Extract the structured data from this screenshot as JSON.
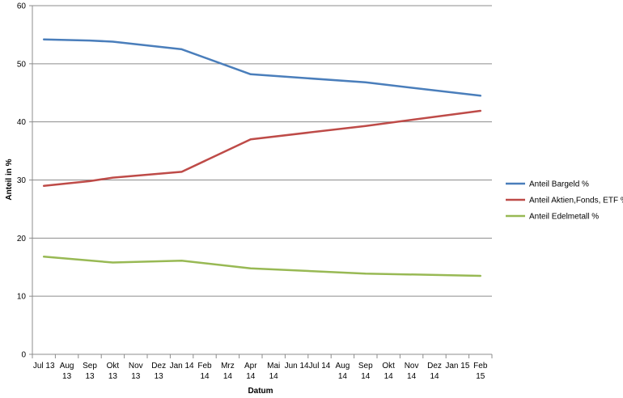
{
  "chart_data": {
    "type": "line",
    "title": "",
    "xlabel": "Datum",
    "ylabel": "Anteil in %",
    "ylim": [
      0,
      60
    ],
    "yticks": [
      0,
      10,
      20,
      30,
      40,
      50,
      60
    ],
    "grid": true,
    "legend_position": "right",
    "categories": [
      "Jul 13",
      "Aug 13",
      "Sep 13",
      "Okt 13",
      "Nov 13",
      "Dez 13",
      "Jan 14",
      "Feb 14",
      "Mrz 14",
      "Apr 14",
      "Mai 14",
      "Jun 14",
      "Jul 14",
      "Aug 14",
      "Sep 14",
      "Okt 14",
      "Nov 14",
      "Dez 14",
      "Jan 15",
      "Feb 15"
    ],
    "tick_labels": [
      [
        "Jul 13"
      ],
      [
        "Aug",
        "13"
      ],
      [
        "Sep",
        "13"
      ],
      [
        "Okt",
        "13"
      ],
      [
        "Nov",
        "13"
      ],
      [
        "Dez",
        "13"
      ],
      [
        "Jan 14"
      ],
      [
        "Feb",
        "14"
      ],
      [
        "Mrz",
        "14"
      ],
      [
        "Apr",
        "14"
      ],
      [
        "Mai",
        "14"
      ],
      [
        "Jun 14"
      ],
      [
        "Jul 14"
      ],
      [
        "Aug",
        "14"
      ],
      [
        "Sep",
        "14"
      ],
      [
        "Okt",
        "14"
      ],
      [
        "Nov",
        "14"
      ],
      [
        "Dez",
        "14"
      ],
      [
        "Jan 15"
      ],
      [
        "Feb",
        "15"
      ]
    ],
    "series": [
      {
        "name": "Anteil Bargeld %",
        "color": "#4a7ebb",
        "points": [
          [
            0,
            54.2
          ],
          [
            2,
            54.0
          ],
          [
            3,
            53.8
          ],
          [
            6,
            52.5
          ],
          [
            9,
            48.2
          ],
          [
            14,
            46.8
          ],
          [
            19,
            44.5
          ]
        ]
      },
      {
        "name": "Anteil Aktien,Fonds, ETF %",
        "color": "#be4b48",
        "points": [
          [
            0,
            29.0
          ],
          [
            2,
            29.8
          ],
          [
            3,
            30.4
          ],
          [
            6,
            31.4
          ],
          [
            9,
            37.0
          ],
          [
            14,
            39.3
          ],
          [
            19,
            41.9
          ]
        ]
      },
      {
        "name": "Anteil Edelmetall %",
        "color": "#98b954",
        "points": [
          [
            0,
            16.8
          ],
          [
            3,
            15.8
          ],
          [
            6,
            16.1
          ],
          [
            9,
            14.8
          ],
          [
            14,
            13.9
          ],
          [
            19,
            13.5
          ]
        ]
      }
    ]
  }
}
